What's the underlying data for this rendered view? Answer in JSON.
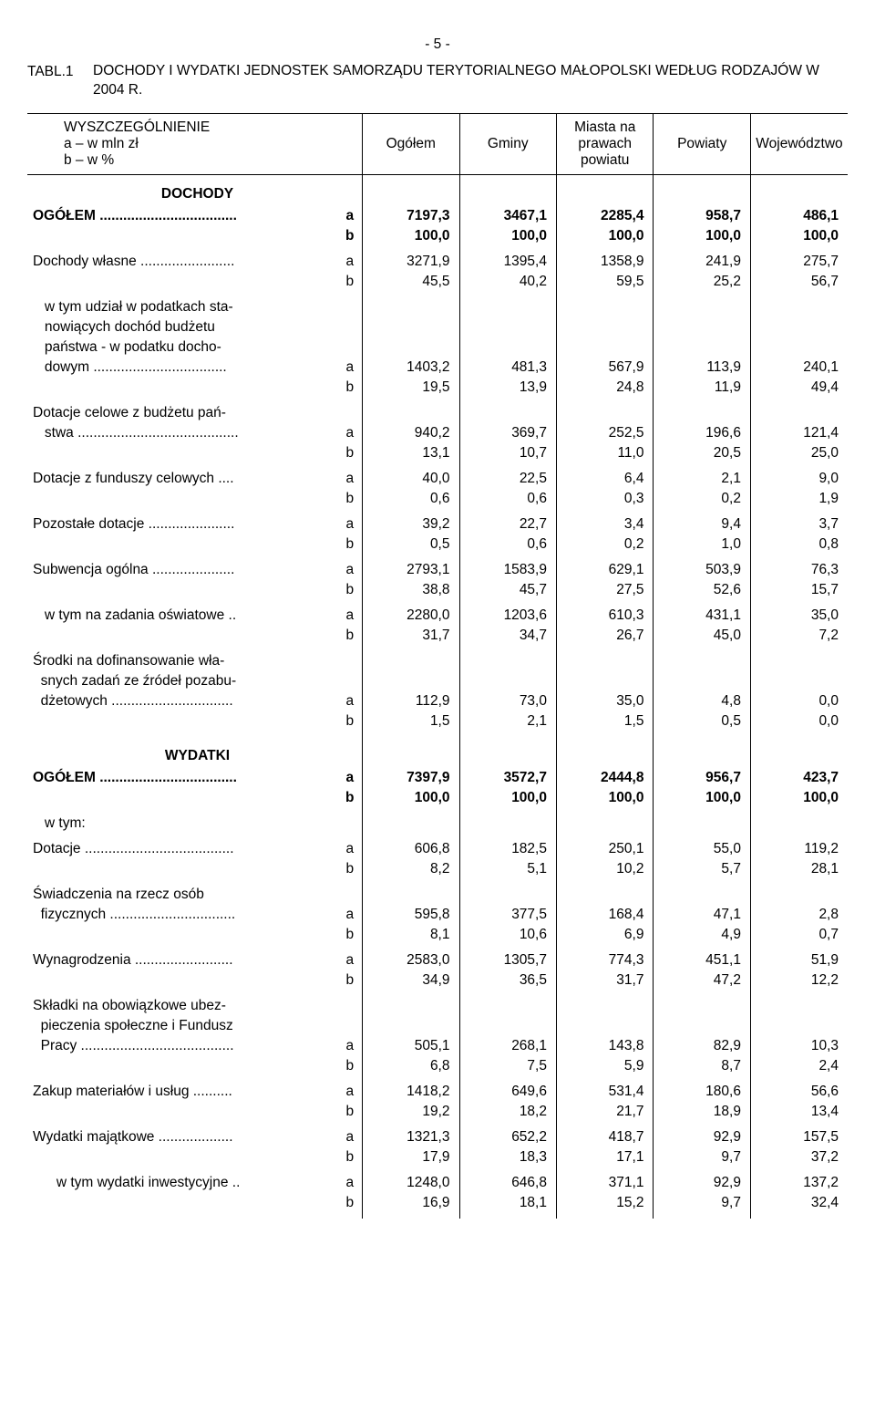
{
  "page_number": "- 5 -",
  "title_prefix": "TABL.1",
  "title_main": "DOCHODY I WYDATKI JEDNOSTEK SAMORZĄDU TERYTORIALNEGO MAŁOPOLSKI WEDŁUG RODZAJÓW W 2004 R.",
  "spec_lines": [
    "WYSZCZEGÓLNIENIE",
    "a – w mln zł",
    "b – w %"
  ],
  "columns": [
    "Ogółem",
    "Gminy",
    "Miasta na prawach powiatu",
    "Powiaty",
    "Województwo"
  ],
  "sections": [
    {
      "heading": "DOCHODY",
      "rows": [
        {
          "label": "OGÓŁEM ...................................",
          "bold": true,
          "a": [
            "7197,3",
            "3467,1",
            "2285,4",
            "958,7",
            "486,1"
          ],
          "b": [
            "100,0",
            "100,0",
            "100,0",
            "100,0",
            "100,0"
          ]
        },
        {
          "label": "Dochody własne ........................",
          "a": [
            "3271,9",
            "1395,4",
            "1358,9",
            "241,9",
            "275,7"
          ],
          "b": [
            "45,5",
            "40,2",
            "59,5",
            "25,2",
            "56,7"
          ]
        },
        {
          "label": "   w tym udział w podatkach sta-\n   nowiących dochód budżetu\n   państwa - w podatku docho-\n   dowym ..................................",
          "a": [
            "1403,2",
            "481,3",
            "567,9",
            "113,9",
            "240,1"
          ],
          "b": [
            "19,5",
            "13,9",
            "24,8",
            "11,9",
            "49,4"
          ]
        },
        {
          "label": "Dotacje celowe z budżetu pań-\n   stwa .........................................",
          "a": [
            "940,2",
            "369,7",
            "252,5",
            "196,6",
            "121,4"
          ],
          "b": [
            "13,1",
            "10,7",
            "11,0",
            "20,5",
            "25,0"
          ]
        },
        {
          "label": "Dotacje z funduszy celowych ....",
          "a": [
            "40,0",
            "22,5",
            "6,4",
            "2,1",
            "9,0"
          ],
          "b": [
            "0,6",
            "0,6",
            "0,3",
            "0,2",
            "1,9"
          ]
        },
        {
          "label": "Pozostałe dotacje ......................",
          "a": [
            "39,2",
            "22,7",
            "3,4",
            "9,4",
            "3,7"
          ],
          "b": [
            "0,5",
            "0,6",
            "0,2",
            "1,0",
            "0,8"
          ]
        },
        {
          "label": "Subwencja ogólna .....................",
          "a": [
            "2793,1",
            "1583,9",
            "629,1",
            "503,9",
            "76,3"
          ],
          "b": [
            "38,8",
            "45,7",
            "27,5",
            "52,6",
            "15,7"
          ]
        },
        {
          "label": "   w tym na zadania oświatowe ..",
          "a": [
            "2280,0",
            "1203,6",
            "610,3",
            "431,1",
            "35,0"
          ],
          "b": [
            "31,7",
            "34,7",
            "26,7",
            "45,0",
            "7,2"
          ]
        },
        {
          "label": "Środki na dofinansowanie wła-\n  snych zadań ze źródeł pozabu-\n  dżetowych ...............................",
          "a": [
            "112,9",
            "73,0",
            "35,0",
            "4,8",
            "0,0"
          ],
          "b": [
            "1,5",
            "2,1",
            "1,5",
            "0,5",
            "0,0"
          ]
        }
      ]
    },
    {
      "heading": "WYDATKI",
      "rows": [
        {
          "label": "OGÓŁEM ...................................",
          "bold": true,
          "a": [
            "7397,9",
            "3572,7",
            "2444,8",
            "956,7",
            "423,7"
          ],
          "b": [
            "100,0",
            "100,0",
            "100,0",
            "100,0",
            "100,0"
          ]
        },
        {
          "label": "   w tym:",
          "a": null,
          "b": null
        },
        {
          "label": "Dotacje ......................................",
          "a": [
            "606,8",
            "182,5",
            "250,1",
            "55,0",
            "119,2"
          ],
          "b": [
            "8,2",
            "5,1",
            "10,2",
            "5,7",
            "28,1"
          ]
        },
        {
          "label": "Świadczenia na rzecz osób\n  fizycznych ................................",
          "a": [
            "595,8",
            "377,5",
            "168,4",
            "47,1",
            "2,8"
          ],
          "b": [
            "8,1",
            "10,6",
            "6,9",
            "4,9",
            "0,7"
          ]
        },
        {
          "label": "Wynagrodzenia .........................",
          "a": [
            "2583,0",
            "1305,7",
            "774,3",
            "451,1",
            "51,9"
          ],
          "b": [
            "34,9",
            "36,5",
            "31,7",
            "47,2",
            "12,2"
          ]
        },
        {
          "label": "Składki na obowiązkowe ubez-\n  pieczenia społeczne i Fundusz\n  Pracy .......................................",
          "a": [
            "505,1",
            "268,1",
            "143,8",
            "82,9",
            "10,3"
          ],
          "b": [
            "6,8",
            "7,5",
            "5,9",
            "8,7",
            "2,4"
          ]
        },
        {
          "label": "Zakup materiałów i usług ..........",
          "a": [
            "1418,2",
            "649,6",
            "531,4",
            "180,6",
            "56,6"
          ],
          "b": [
            "19,2",
            "18,2",
            "21,7",
            "18,9",
            "13,4"
          ]
        },
        {
          "label": "Wydatki majątkowe ...................",
          "a": [
            "1321,3",
            "652,2",
            "418,7",
            "92,9",
            "157,5"
          ],
          "b": [
            "17,9",
            "18,3",
            "17,1",
            "9,7",
            "37,2"
          ]
        },
        {
          "label": "      w tym wydatki inwestycyjne ..",
          "a": [
            "1248,0",
            "646,8",
            "371,1",
            "92,9",
            "137,2"
          ],
          "b": [
            "16,9",
            "18,1",
            "15,2",
            "9,7",
            "32,4"
          ]
        }
      ]
    }
  ]
}
